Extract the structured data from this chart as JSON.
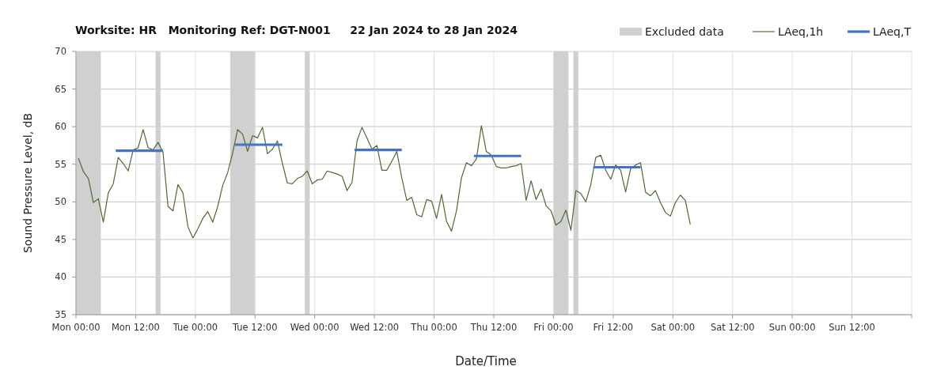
{
  "chart_data": {
    "type": "line",
    "title": "Worksite: HR   Monitoring Ref: DGT-N001     22 Jan 2024 to 28 Jan 2024",
    "xlabel": "Date/Time",
    "ylabel": "Sound Pressure Level, dB",
    "xlim": [
      "2024-01-22T00:00",
      "2024-01-29T00:00"
    ],
    "xticks": [
      {
        "value": "2024-01-22T00:00",
        "label": "Mon 00:00"
      },
      {
        "value": "2024-01-22T12:00",
        "label": "Mon 12:00"
      },
      {
        "value": "2024-01-23T00:00",
        "label": "Tue 00:00"
      },
      {
        "value": "2024-01-23T12:00",
        "label": "Tue 12:00"
      },
      {
        "value": "2024-01-24T00:00",
        "label": "Wed 00:00"
      },
      {
        "value": "2024-01-24T12:00",
        "label": "Wed 12:00"
      },
      {
        "value": "2024-01-25T00:00",
        "label": "Thu 00:00"
      },
      {
        "value": "2024-01-25T12:00",
        "label": "Thu 12:00"
      },
      {
        "value": "2024-01-26T00:00",
        "label": "Fri 00:00"
      },
      {
        "value": "2024-01-26T12:00",
        "label": "Fri 12:00"
      },
      {
        "value": "2024-01-27T00:00",
        "label": "Sat 00:00"
      },
      {
        "value": "2024-01-27T12:00",
        "label": "Sat 12:00"
      },
      {
        "value": "2024-01-28T00:00",
        "label": "Sun 00:00"
      },
      {
        "value": "2024-01-28T12:00",
        "label": "Sun 12:00"
      },
      {
        "value": "2024-01-29T00:00",
        "label": null
      }
    ],
    "ylim": [
      35,
      70
    ],
    "yticks": [
      35,
      40,
      45,
      50,
      55,
      60,
      65,
      70
    ],
    "grid": true,
    "legend": "top right",
    "bands": [
      {
        "axis": "x",
        "from": "2024-01-22T00:00",
        "to": "2024-01-22T05:00",
        "label": "Excluded data",
        "color": "#d0d0d0"
      },
      {
        "axis": "x",
        "from": "2024-01-22T16:00",
        "to": "2024-01-22T17:00",
        "color": "#d0d0d0"
      },
      {
        "axis": "x",
        "from": "2024-01-23T07:00",
        "to": "2024-01-23T12:00",
        "color": "#d0d0d0"
      },
      {
        "axis": "x",
        "from": "2024-01-23T22:00",
        "to": "2024-01-23T23:00",
        "color": "#d0d0d0"
      },
      {
        "axis": "x",
        "from": "2024-01-26T00:00",
        "to": "2024-01-26T03:00",
        "color": "#d0d0d0"
      },
      {
        "axis": "x",
        "from": "2024-01-26T04:00",
        "to": "2024-01-26T05:00",
        "color": "#d0d0d0"
      }
    ],
    "series": [
      {
        "name": "LAeq,1h",
        "color": "#4f6b34",
        "x": [
          "2024-01-22T00:30",
          "2024-01-22T01:30",
          "2024-01-22T02:30",
          "2024-01-22T03:30",
          "2024-01-22T04:30",
          "2024-01-22T05:30",
          "2024-01-22T06:30",
          "2024-01-22T07:30",
          "2024-01-22T08:30",
          "2024-01-22T09:30",
          "2024-01-22T10:30",
          "2024-01-22T11:30",
          "2024-01-22T12:30",
          "2024-01-22T13:30",
          "2024-01-22T14:30",
          "2024-01-22T15:30",
          "2024-01-22T16:30",
          "2024-01-22T17:30",
          "2024-01-22T18:30",
          "2024-01-22T19:30",
          "2024-01-22T20:30",
          "2024-01-22T21:30",
          "2024-01-22T22:30",
          "2024-01-22T23:30",
          "2024-01-23T00:30",
          "2024-01-23T01:30",
          "2024-01-23T02:30",
          "2024-01-23T03:30",
          "2024-01-23T04:30",
          "2024-01-23T05:30",
          "2024-01-23T06:30",
          "2024-01-23T07:30",
          "2024-01-23T08:30",
          "2024-01-23T09:30",
          "2024-01-23T10:30",
          "2024-01-23T11:30",
          "2024-01-23T12:30",
          "2024-01-23T13:30",
          "2024-01-23T14:30",
          "2024-01-23T15:30",
          "2024-01-23T16:30",
          "2024-01-23T17:30",
          "2024-01-23T18:30",
          "2024-01-23T19:30",
          "2024-01-23T20:30",
          "2024-01-23T21:30",
          "2024-01-23T22:30",
          "2024-01-23T23:30",
          "2024-01-24T00:30",
          "2024-01-24T01:30",
          "2024-01-24T02:30",
          "2024-01-24T03:30",
          "2024-01-24T04:30",
          "2024-01-24T05:30",
          "2024-01-24T06:30",
          "2024-01-24T07:30",
          "2024-01-24T08:30",
          "2024-01-24T09:30",
          "2024-01-24T10:30",
          "2024-01-24T11:30",
          "2024-01-24T12:30",
          "2024-01-24T13:30",
          "2024-01-24T14:30",
          "2024-01-24T15:30",
          "2024-01-24T16:30",
          "2024-01-24T17:30",
          "2024-01-24T18:30",
          "2024-01-24T19:30",
          "2024-01-24T20:30",
          "2024-01-24T21:30",
          "2024-01-24T22:30",
          "2024-01-24T23:30",
          "2024-01-25T00:30",
          "2024-01-25T01:30",
          "2024-01-25T02:30",
          "2024-01-25T03:30",
          "2024-01-25T04:30",
          "2024-01-25T05:30",
          "2024-01-25T06:30",
          "2024-01-25T07:30",
          "2024-01-25T08:30",
          "2024-01-25T09:30",
          "2024-01-25T10:30",
          "2024-01-25T11:30",
          "2024-01-25T12:30",
          "2024-01-25T13:30",
          "2024-01-25T14:30",
          "2024-01-25T15:30",
          "2024-01-25T16:30",
          "2024-01-25T17:30",
          "2024-01-25T18:30",
          "2024-01-25T19:30",
          "2024-01-25T20:30",
          "2024-01-25T21:30",
          "2024-01-25T22:30",
          "2024-01-25T23:30",
          "2024-01-26T00:30",
          "2024-01-26T01:30",
          "2024-01-26T02:30",
          "2024-01-26T03:30",
          "2024-01-26T04:30",
          "2024-01-26T05:30",
          "2024-01-26T06:30",
          "2024-01-26T07:30",
          "2024-01-26T08:30",
          "2024-01-26T09:30",
          "2024-01-26T10:30",
          "2024-01-26T11:30",
          "2024-01-26T12:30",
          "2024-01-26T13:30",
          "2024-01-26T14:30",
          "2024-01-26T15:30",
          "2024-01-26T16:30",
          "2024-01-26T17:30",
          "2024-01-26T18:30",
          "2024-01-26T19:30",
          "2024-01-26T20:30",
          "2024-01-26T21:30",
          "2024-01-26T22:30",
          "2024-01-26T23:30",
          "2024-01-27T00:30",
          "2024-01-27T01:30",
          "2024-01-27T02:30",
          "2024-01-27T03:30"
        ],
        "values": [
          55.8,
          54.0,
          53.1,
          49.9,
          50.4,
          47.3,
          51.2,
          52.4,
          55.9,
          55.1,
          54.1,
          56.9,
          57.2,
          59.6,
          57.2,
          56.9,
          57.9,
          56.6,
          49.4,
          48.8,
          52.3,
          51.2,
          46.7,
          45.2,
          46.4,
          47.8,
          48.7,
          47.3,
          49.4,
          52.2,
          53.9,
          56.5,
          59.6,
          59.0,
          56.7,
          58.8,
          58.5,
          59.9,
          56.4,
          57.0,
          58.1,
          55.1,
          52.5,
          52.4,
          53.1,
          53.4,
          54.1,
          52.4,
          52.9,
          53.0,
          54.1,
          53.9,
          53.7,
          53.4,
          51.5,
          52.6,
          58.1,
          59.9,
          58.5,
          57.0,
          57.5,
          54.2,
          54.2,
          55.4,
          56.7,
          53.2,
          50.2,
          50.6,
          48.3,
          48.0,
          50.3,
          50.1,
          47.8,
          51.0,
          47.4,
          46.1,
          48.8,
          53.2,
          55.2,
          54.8,
          55.7,
          60.1,
          56.7,
          56.2,
          54.7,
          54.5,
          54.5,
          54.7,
          54.8,
          55.1,
          50.2,
          52.8,
          50.3,
          51.7,
          49.5,
          48.8,
          46.9,
          47.4,
          48.9,
          46.2,
          51.5,
          51.1,
          50.0,
          52.3,
          55.9,
          56.2,
          54.2,
          53.0,
          54.9,
          54.2,
          51.3,
          54.4,
          54.9,
          55.2,
          51.3,
          50.8,
          51.5,
          49.9,
          48.6,
          48.1,
          49.9,
          50.9,
          50.2,
          47.0
        ]
      },
      {
        "name": "LAeq,T",
        "color": "#4472c4",
        "x": [
          "2024-01-22T08:00",
          "2024-01-22T17:30",
          "2024-01-22T20:00",
          "2024-01-23T08:00",
          "2024-01-23T17:30",
          "2024-01-23T20:00",
          "2024-01-24T08:00",
          "2024-01-24T17:30",
          "2024-01-24T20:00",
          "2024-01-25T08:00",
          "2024-01-25T17:30",
          "2024-01-25T20:00",
          "2024-01-26T08:00",
          "2024-01-26T17:30"
        ],
        "values": [
          56.8,
          56.8,
          null,
          57.6,
          57.6,
          null,
          56.9,
          56.9,
          null,
          56.1,
          56.1,
          null,
          54.6,
          54.6
        ]
      }
    ]
  }
}
